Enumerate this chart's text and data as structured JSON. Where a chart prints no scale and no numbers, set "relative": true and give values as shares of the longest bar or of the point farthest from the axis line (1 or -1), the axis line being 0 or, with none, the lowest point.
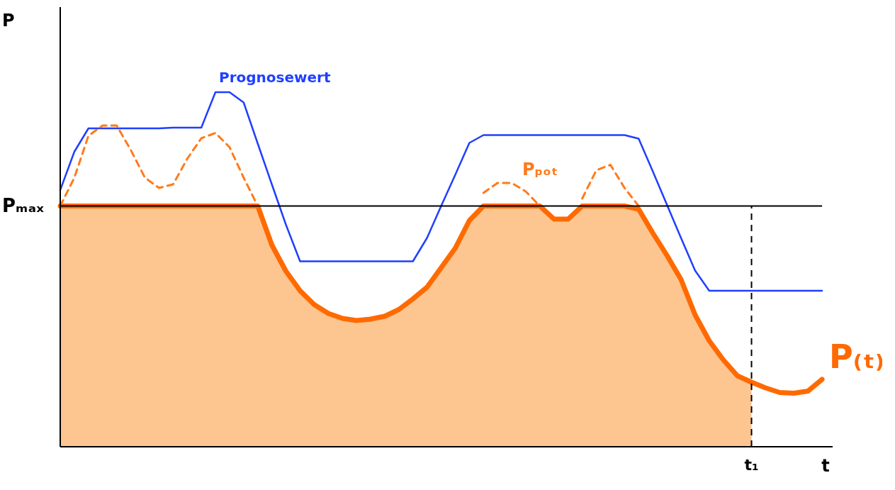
{
  "chart_data": {
    "type": "line",
    "relative": true,
    "xlabel": "t",
    "ylabel": "P",
    "line_style": "solid",
    "categories": [
      null,
      null,
      null,
      null,
      null,
      null,
      null,
      null,
      null,
      null,
      null,
      null,
      null,
      null,
      null,
      null,
      null,
      null,
      null,
      null,
      null,
      null,
      null,
      null,
      null,
      null,
      null,
      null,
      null,
      null,
      null,
      null,
      null,
      null,
      null,
      null,
      null,
      null,
      null,
      null,
      null,
      null,
      null,
      null,
      null,
      null,
      null,
      null,
      null,
      null,
      null,
      null,
      null,
      null,
      null
    ],
    "annotations": [
      "t₁"
    ],
    "ref_lines": [
      {
        "axis": "y",
        "value": 0.679,
        "label": "Pₘₐₓ",
        "color": "#000000",
        "line_style": "solid"
      }
    ],
    "series": [
      {
        "type": "area",
        "color": "#fdc590",
        "values": [
          0.679,
          0.679,
          0.679,
          0.679,
          0.679,
          0.679,
          0.679,
          0.679,
          0.679,
          0.679,
          0.679,
          0.679,
          0.679,
          0.679,
          0.679,
          0.569,
          0.495,
          0.44,
          0.401,
          0.376,
          0.362,
          0.356,
          0.36,
          0.368,
          0.387,
          0.417,
          0.45,
          0.505,
          0.56,
          0.638,
          0.679,
          0.679,
          0.679,
          0.679,
          0.679,
          0.642,
          0.642,
          0.679,
          0.679,
          0.679,
          0.679,
          0.67,
          0.603,
          0.54,
          0.472,
          0.372,
          0.299,
          0.245,
          0.2,
          0.182,
          null,
          null,
          null,
          null,
          null
        ]
      },
      {
        "name": "Prognosewert",
        "color": "#1f3fff",
        "values": [
          0.724,
          0.832,
          0.898,
          0.898,
          0.898,
          0.898,
          0.898,
          0.898,
          0.9,
          0.9,
          0.9,
          1.0,
          1.0,
          0.971,
          0.855,
          0.74,
          0.626,
          0.523,
          0.523,
          0.523,
          0.523,
          0.523,
          0.523,
          0.523,
          0.523,
          0.523,
          0.589,
          0.679,
          0.767,
          0.857,
          0.879,
          0.879,
          0.879,
          0.879,
          0.879,
          0.879,
          0.879,
          0.879,
          0.879,
          0.879,
          0.879,
          0.869,
          0.777,
          0.683,
          0.589,
          0.497,
          0.44,
          0.44,
          0.44,
          0.44,
          0.44,
          0.44,
          0.44,
          0.44,
          0.44
        ]
      },
      {
        "name": "Pₚₒₜ",
        "color": "#ff7a1a",
        "line_style": "dashed",
        "values": [
          0.679,
          0.759,
          0.877,
          0.906,
          0.906,
          0.837,
          0.759,
          0.73,
          0.74,
          0.812,
          0.87,
          0.885,
          0.845,
          0.759,
          0.679,
          null,
          null,
          null,
          null,
          null,
          null,
          null,
          null,
          null,
          null,
          null,
          null,
          null,
          null,
          null,
          0.716,
          0.744,
          0.744,
          0.72,
          0.679,
          null,
          null,
          0.7,
          0.78,
          0.795,
          0.73,
          0.679,
          null,
          null,
          null,
          null,
          null,
          null,
          null,
          null,
          null,
          null,
          null,
          null,
          null
        ]
      },
      {
        "name": "P₍ₜ₎",
        "color": "#ff6a00",
        "values": [
          0.679,
          0.679,
          0.679,
          0.679,
          0.679,
          0.679,
          0.679,
          0.679,
          0.679,
          0.679,
          0.679,
          0.679,
          0.679,
          0.679,
          0.679,
          0.569,
          0.495,
          0.44,
          0.401,
          0.376,
          0.362,
          0.356,
          0.36,
          0.368,
          0.387,
          0.417,
          0.45,
          0.505,
          0.56,
          0.638,
          0.679,
          0.679,
          0.679,
          0.679,
          0.679,
          0.642,
          0.642,
          0.679,
          0.679,
          0.679,
          0.679,
          0.67,
          0.603,
          0.54,
          0.472,
          0.372,
          0.299,
          0.245,
          0.2,
          0.182,
          0.166,
          0.153,
          0.151,
          0.157,
          0.19
        ]
      }
    ]
  }
}
